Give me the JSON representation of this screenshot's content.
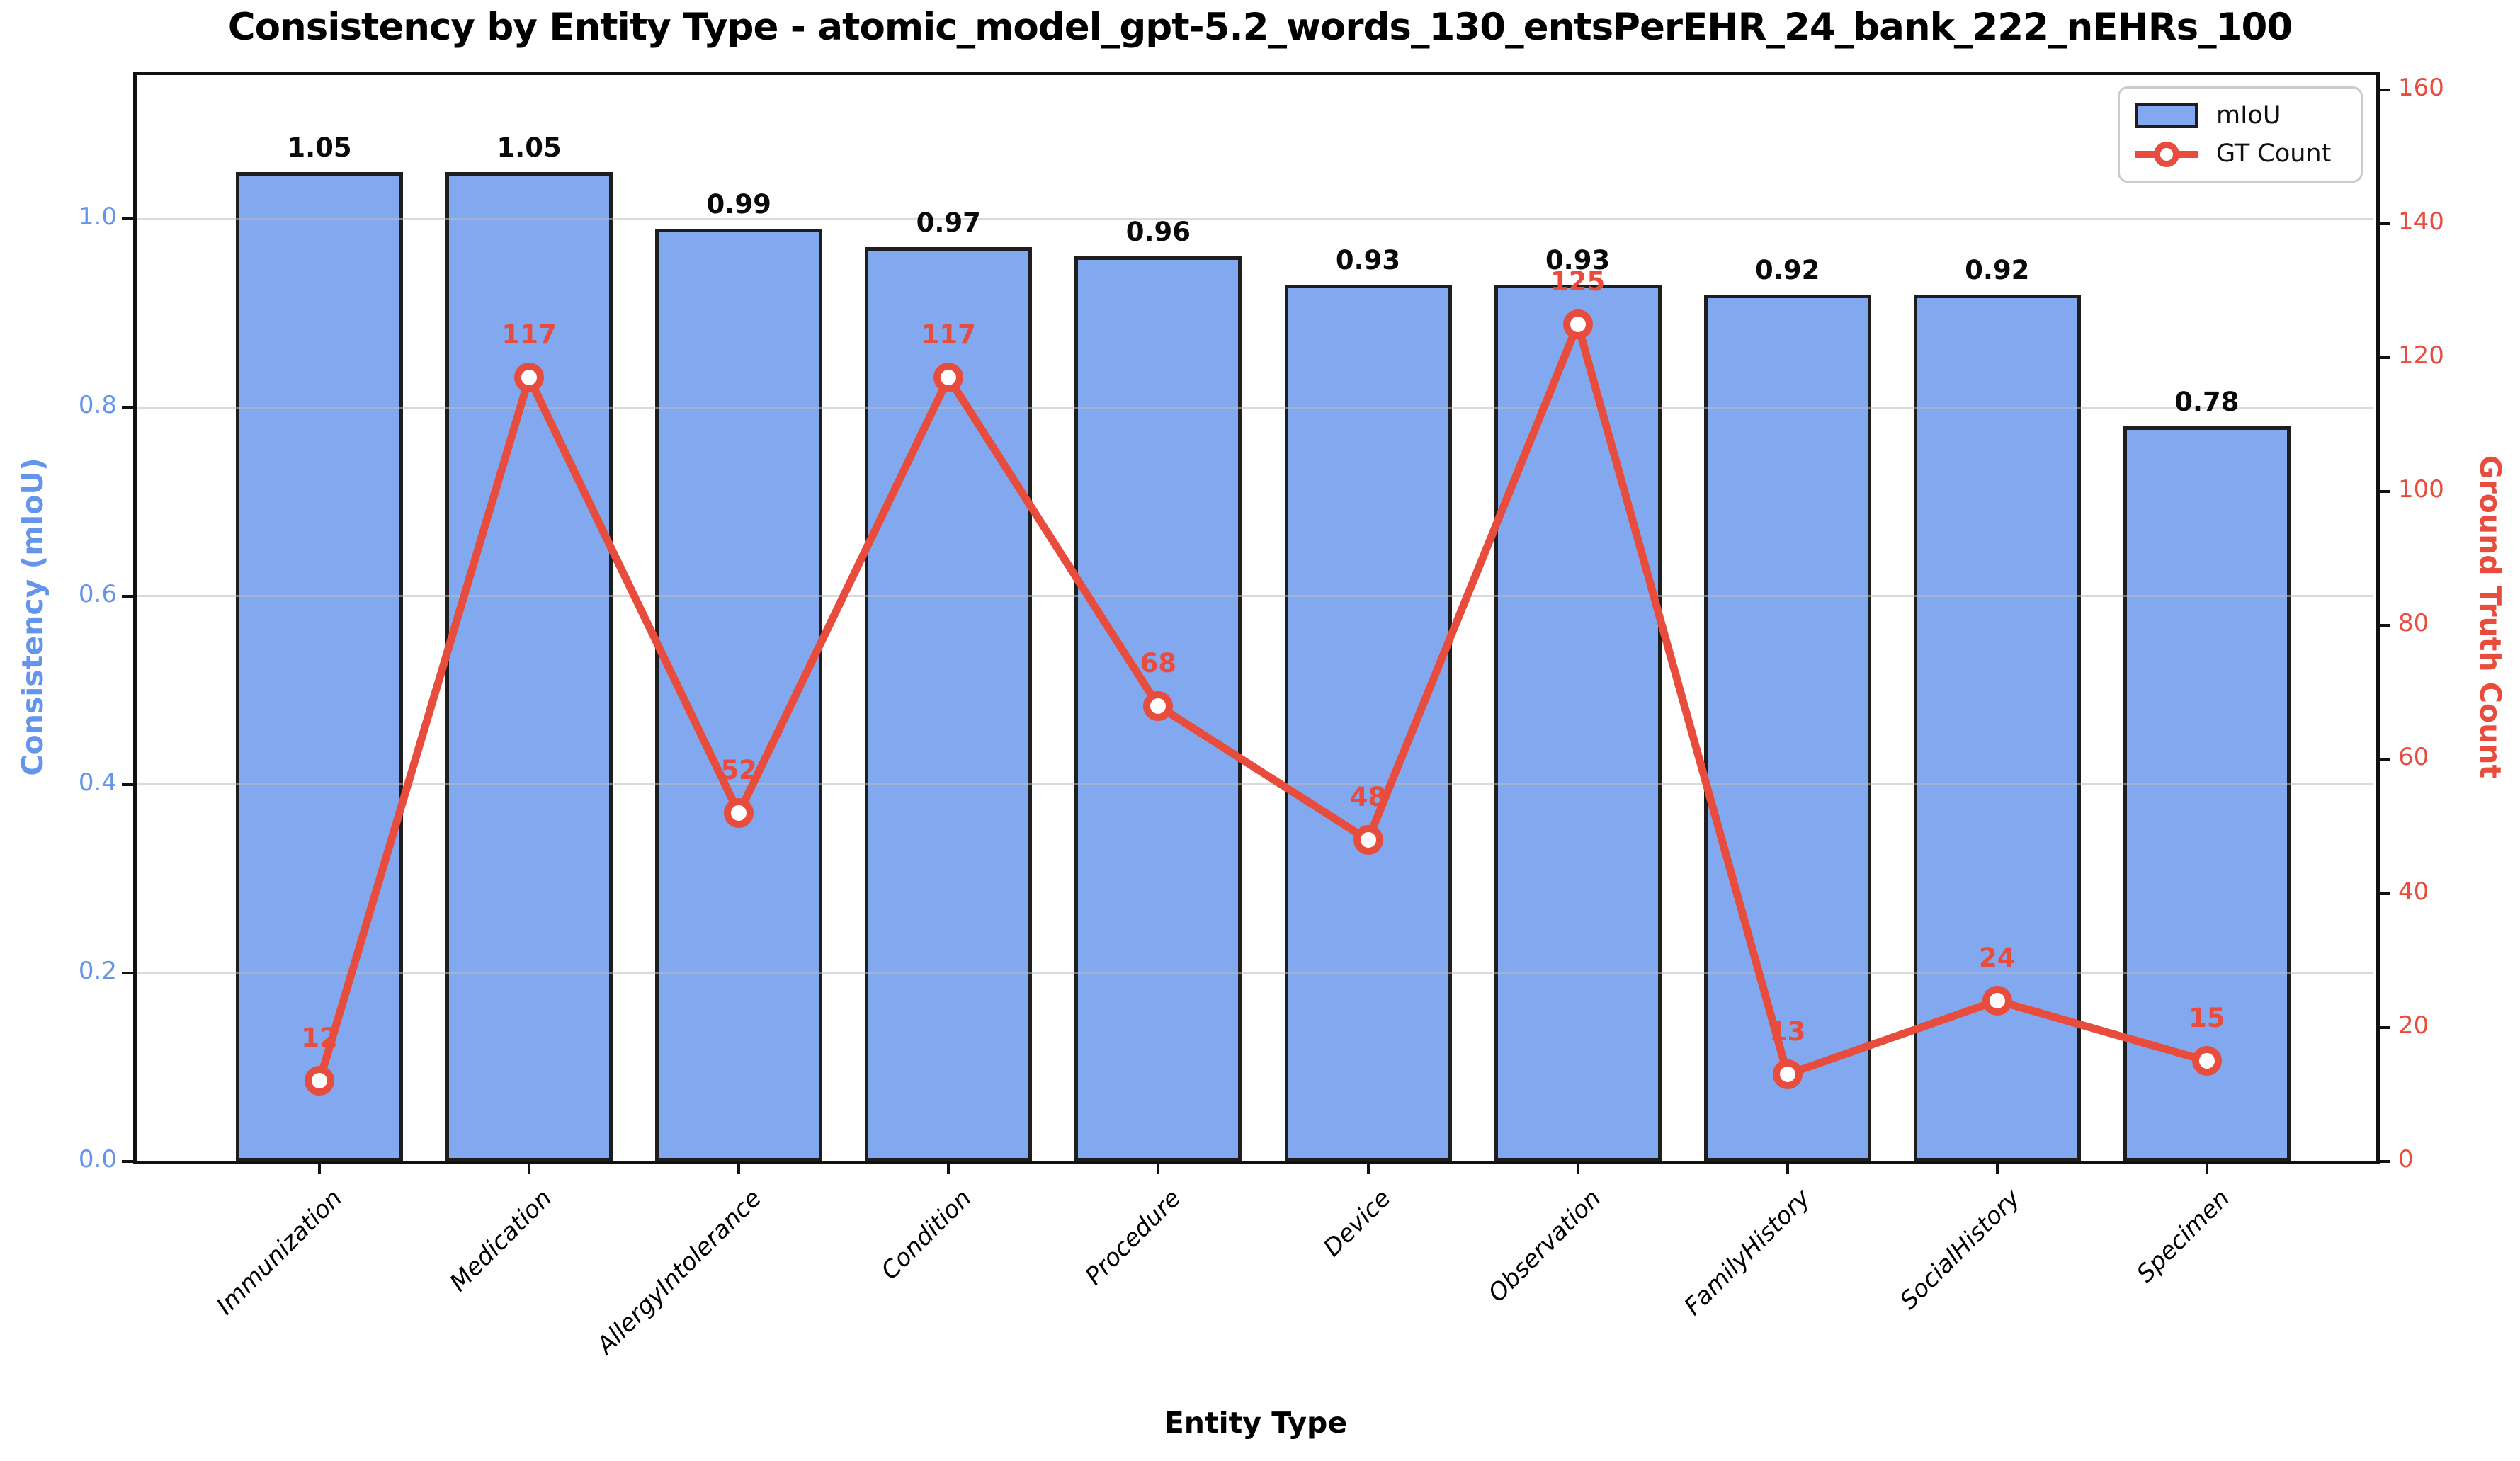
{
  "title": "Consistency by Entity Type - atomic_model_gpt-5.2_words_130_entsPerEHR_24_bank_222_nEHRs_100",
  "legend": {
    "bar_label": "mIoU",
    "line_label": "GT Count"
  },
  "axes": {
    "x_label": "Entity Type",
    "y_left_label": "Consistency (mIoU)",
    "y_right_label": "Ground Truth Count",
    "y_left_ticks": [
      "0.0",
      "0.2",
      "0.4",
      "0.6",
      "0.8",
      "1.0"
    ],
    "y_right_ticks": [
      "0",
      "20",
      "40",
      "60",
      "80",
      "100",
      "120",
      "140",
      "160"
    ]
  },
  "colors": {
    "bar_fill": "#82a9f0",
    "bar_edge": "#1e1e1e",
    "line": "#e74c3c",
    "left_axis_text": "#6495ed",
    "right_axis_text": "#e74c3c",
    "grid": "#bbbbbb",
    "spine": "#111111"
  },
  "chart_data": {
    "type": "bar",
    "subtype": "bar+line dual axis",
    "title": "Consistency by Entity Type - atomic_model_gpt-5.2_words_130_entsPerEHR_24_bank_222_nEHRs_100",
    "xlabel": "Entity Type",
    "ylabel_left": "Consistency (mIoU)",
    "ylabel_right": "Ground Truth Count",
    "categories": [
      "Immunization",
      "Medication",
      "AllergyIntolerance",
      "Condition",
      "Procedure",
      "Device",
      "Observation",
      "FamilyHistory",
      "SocialHistory",
      "Specimen"
    ],
    "series": [
      {
        "name": "mIoU",
        "type": "bar",
        "axis": "left",
        "values": [
          1.05,
          1.05,
          0.99,
          0.97,
          0.96,
          0.93,
          0.93,
          0.92,
          0.92,
          0.78
        ],
        "labels": [
          "1.05",
          "1.05",
          "0.99",
          "0.97",
          "0.96",
          "0.93",
          "0.93",
          "0.92",
          "0.92",
          "0.78"
        ]
      },
      {
        "name": "GT Count",
        "type": "line",
        "axis": "right",
        "values": [
          12,
          117,
          52,
          117,
          68,
          48,
          125,
          13,
          24,
          15
        ],
        "labels": [
          "12",
          "117",
          "52",
          "117",
          "68",
          "48",
          "125",
          "13",
          "24",
          "15"
        ]
      }
    ],
    "y_left_range": [
      0,
      1.155
    ],
    "y_right_range": [
      0,
      162.5
    ],
    "grid": "horizontal gridlines at left-axis ticks, drawn over bars",
    "legend_position": "upper right"
  }
}
